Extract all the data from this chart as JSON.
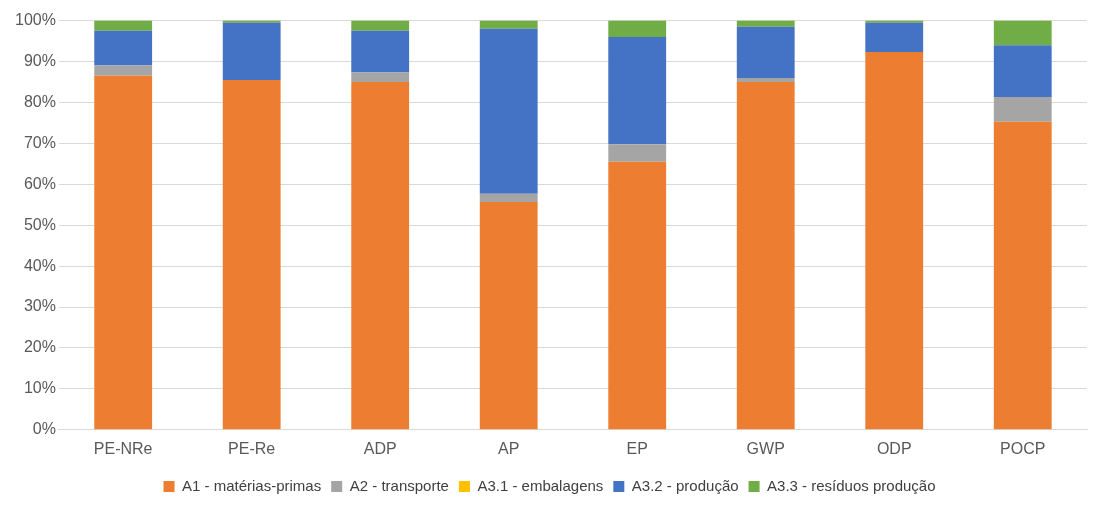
{
  "chart_data": {
    "type": "bar",
    "stacked": true,
    "categories": [
      "PE-NRe",
      "PE-Re",
      "ADP",
      "AP",
      "EP",
      "GWP",
      "ODP",
      "POCP"
    ],
    "series": [
      {
        "name": "A1 - matérias-primas",
        "color": "#ed7d31",
        "values": [
          86.5,
          85.5,
          85,
          55.7,
          65.5,
          85,
          92.3,
          75.3
        ]
      },
      {
        "name": "A2 - transporte",
        "color": "#a5a5a5",
        "values": [
          2.5,
          0,
          2.3,
          2,
          4.3,
          1,
          0,
          6
        ]
      },
      {
        "name": "A3.1 - embalagens",
        "color": "#ffc000",
        "values": [
          0,
          0,
          0,
          0,
          0,
          0,
          0,
          0
        ]
      },
      {
        "name": "A3.2 - produção",
        "color": "#4472c4",
        "values": [
          8.5,
          14,
          10.2,
          40.3,
          26.2,
          12.5,
          7.2,
          12.7
        ]
      },
      {
        "name": "A3.3 - resíduos produção",
        "color": "#70ad47",
        "values": [
          2.5,
          0.5,
          2.5,
          2,
          4,
          1.5,
          0.5,
          6
        ]
      }
    ],
    "ylim": [
      0,
      100
    ],
    "yticks": [
      {
        "value": 0,
        "label": "0%"
      },
      {
        "value": 10,
        "label": "10%"
      },
      {
        "value": 20,
        "label": "20%"
      },
      {
        "value": 30,
        "label": "30%"
      },
      {
        "value": 40,
        "label": "40%"
      },
      {
        "value": 50,
        "label": "50%"
      },
      {
        "value": 60,
        "label": "60%"
      },
      {
        "value": 70,
        "label": "70%"
      },
      {
        "value": 80,
        "label": "80%"
      },
      {
        "value": 90,
        "label": "90%"
      },
      {
        "value": 100,
        "label": "100%"
      }
    ],
    "grid": "y",
    "legend": "bottom"
  }
}
